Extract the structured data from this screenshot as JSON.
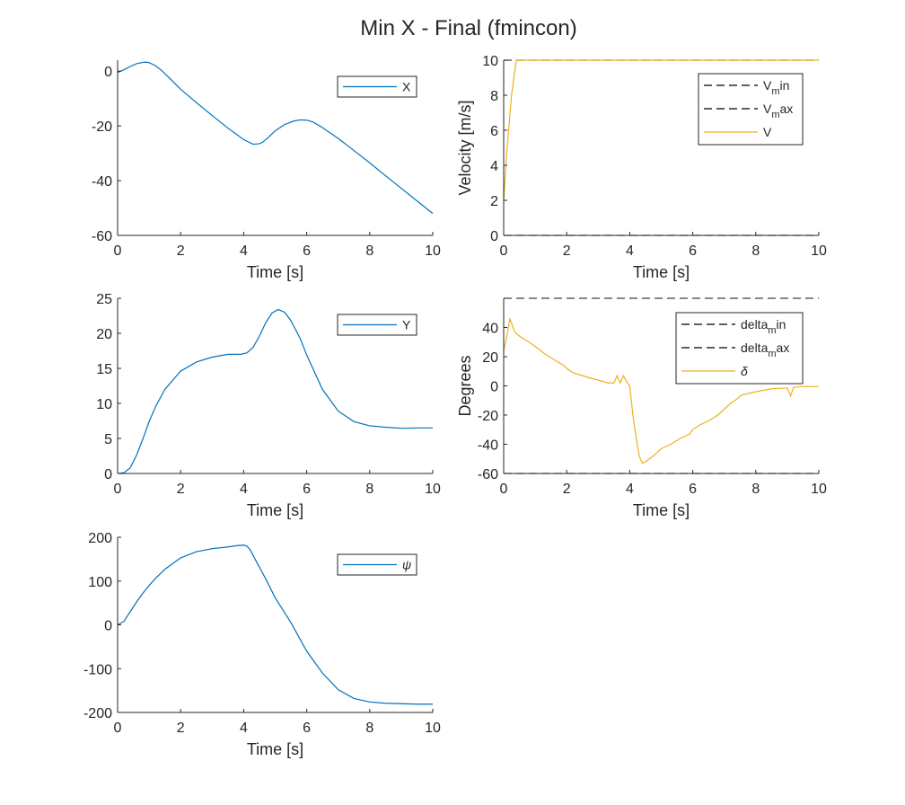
{
  "figure": {
    "title": "Min X - Final (fmincon)"
  },
  "colors": {
    "series_blue": "#0072BD",
    "series_yellow": "#EDB120",
    "bound_black": "#000000",
    "axes": "#262626"
  },
  "chart_data": [
    {
      "type": "line",
      "xlabel": "Time [s]",
      "ylabel": "",
      "xlim": [
        0,
        10
      ],
      "ylim": [
        -60,
        4
      ],
      "xticks": [
        0,
        2,
        4,
        6,
        8,
        10
      ],
      "yticks": [
        -60,
        -40,
        -20,
        0
      ],
      "legend_position": "top-right",
      "series": [
        {
          "name": "X",
          "style": "solid",
          "color": "#0072BD",
          "x": [
            0,
            0.2,
            0.4,
            0.6,
            0.8,
            0.9,
            1.0,
            1.2,
            1.4,
            1.6,
            1.8,
            2.0,
            2.5,
            3.0,
            3.5,
            4.0,
            4.3,
            4.5,
            4.6,
            4.8,
            5.0,
            5.3,
            5.6,
            5.8,
            6.0,
            6.2,
            6.5,
            7.0,
            7.5,
            8.0,
            8.5,
            9.0,
            9.5,
            10.0
          ],
          "y": [
            -0.5,
            0.5,
            1.7,
            2.7,
            3.2,
            3.3,
            3.1,
            2.0,
            0.2,
            -2.0,
            -4.3,
            -6.6,
            -11.5,
            -16.2,
            -20.8,
            -25.0,
            -26.7,
            -26.5,
            -26.0,
            -24.0,
            -21.8,
            -19.5,
            -18.2,
            -17.8,
            -17.9,
            -18.6,
            -20.6,
            -24.6,
            -29.0,
            -33.5,
            -38.2,
            -42.8,
            -47.4,
            -52.0
          ]
        }
      ]
    },
    {
      "type": "line",
      "xlabel": "Time [s]",
      "ylabel": "Velocity [m/s]",
      "xlim": [
        0,
        10
      ],
      "ylim": [
        0,
        10
      ],
      "xticks": [
        0,
        2,
        4,
        6,
        8,
        10
      ],
      "yticks": [
        0,
        2,
        4,
        6,
        8,
        10
      ],
      "legend_position": "top-right",
      "series": [
        {
          "name": "V",
          "name_sub": "m",
          "name_suffix": "in",
          "style": "dashed",
          "color": "#000000",
          "x": [
            0,
            10
          ],
          "y": [
            0,
            0
          ]
        },
        {
          "name": "V",
          "name_sub": "m",
          "name_suffix": "ax",
          "style": "dashed",
          "color": "#000000",
          "x": [
            0,
            10
          ],
          "y": [
            10,
            10
          ]
        },
        {
          "name": "V",
          "style": "solid",
          "color": "#EDB120",
          "x": [
            0,
            0.1,
            0.25,
            0.4,
            1.0,
            10.0
          ],
          "y": [
            2.0,
            4.8,
            8.0,
            10.0,
            10.0,
            10.0
          ]
        }
      ]
    },
    {
      "type": "line",
      "xlabel": "Time [s]",
      "ylabel": "",
      "xlim": [
        0,
        10
      ],
      "ylim": [
        0,
        25
      ],
      "xticks": [
        0,
        2,
        4,
        6,
        8,
        10
      ],
      "yticks": [
        0,
        5,
        10,
        15,
        20,
        25
      ],
      "legend_position": "top-right",
      "series": [
        {
          "name": "Y",
          "style": "solid",
          "color": "#0072BD",
          "x": [
            0,
            0.2,
            0.4,
            0.6,
            0.8,
            1.0,
            1.2,
            1.5,
            2.0,
            2.5,
            3.0,
            3.5,
            3.9,
            4.1,
            4.3,
            4.5,
            4.7,
            4.9,
            5.1,
            5.3,
            5.5,
            5.8,
            6.0,
            6.5,
            7.0,
            7.5,
            8.0,
            8.5,
            9.0,
            9.5,
            10.0
          ],
          "y": [
            0,
            0.1,
            0.8,
            2.6,
            4.9,
            7.4,
            9.5,
            12.0,
            14.6,
            15.9,
            16.6,
            17.0,
            17.0,
            17.2,
            18.0,
            19.6,
            21.5,
            22.9,
            23.4,
            23.0,
            21.8,
            19.2,
            16.9,
            12.0,
            8.9,
            7.4,
            6.8,
            6.6,
            6.45,
            6.5,
            6.5
          ]
        }
      ]
    },
    {
      "type": "line",
      "xlabel": "Time [s]",
      "ylabel": "Degrees",
      "xlim": [
        0,
        10
      ],
      "ylim": [
        -60,
        60
      ],
      "xticks": [
        0,
        2,
        4,
        6,
        8,
        10
      ],
      "yticks": [
        -60,
        -40,
        -20,
        0,
        20,
        40
      ],
      "legend_position": "top-right",
      "series": [
        {
          "name": "delta",
          "name_sub": "m",
          "name_suffix": "in",
          "style": "dashed",
          "color": "#000000",
          "x": [
            0,
            10
          ],
          "y": [
            -60,
            -60
          ]
        },
        {
          "name": "delta",
          "name_sub": "m",
          "name_suffix": "ax",
          "style": "dashed",
          "color": "#000000",
          "x": [
            0,
            10
          ],
          "y": [
            60,
            60
          ]
        },
        {
          "name": "δ",
          "italic": true,
          "style": "solid",
          "color": "#EDB120",
          "x": [
            0,
            0.1,
            0.2,
            0.35,
            0.5,
            0.8,
            1.0,
            1.3,
            1.6,
            1.9,
            2.0,
            2.2,
            2.5,
            2.8,
            3.0,
            3.3,
            3.5,
            3.6,
            3.7,
            3.8,
            3.9,
            4.0,
            4.1,
            4.2,
            4.3,
            4.4,
            4.5,
            4.8,
            5.0,
            5.3,
            5.6,
            5.9,
            6.0,
            6.2,
            6.4,
            6.5,
            6.8,
            7.0,
            7.2,
            7.4,
            7.5,
            7.6,
            7.8,
            8.0,
            8.5,
            9.0,
            9.05,
            9.1,
            9.2,
            9.4,
            10.0
          ],
          "y": [
            24,
            34,
            46,
            37,
            34,
            30,
            27,
            22,
            18,
            14,
            12,
            9,
            7,
            5,
            4,
            2,
            2,
            7,
            2,
            7,
            3,
            0,
            -20,
            -35,
            -48,
            -53,
            -52,
            -47,
            -43,
            -40,
            -36,
            -33,
            -30,
            -27,
            -25,
            -24,
            -20,
            -16,
            -12,
            -9,
            -7,
            -6,
            -5,
            -4,
            -2,
            -1.5,
            -4,
            -7,
            -1,
            -0.5,
            -0.5
          ]
        }
      ]
    },
    {
      "type": "line",
      "xlabel": "Time [s]",
      "ylabel": "",
      "xlim": [
        0,
        10
      ],
      "ylim": [
        -200,
        200
      ],
      "xticks": [
        0,
        2,
        4,
        6,
        8,
        10
      ],
      "yticks": [
        -200,
        -100,
        0,
        100,
        200
      ],
      "legend_position": "top-right",
      "series": [
        {
          "name": "ψ",
          "italic": true,
          "style": "solid",
          "color": "#0072BD",
          "x": [
            0,
            0.2,
            0.4,
            0.6,
            0.8,
            1.0,
            1.2,
            1.5,
            2.0,
            2.5,
            3.0,
            3.5,
            3.8,
            4.0,
            4.1,
            4.2,
            4.4,
            4.7,
            5.0,
            5.5,
            6.0,
            6.5,
            7.0,
            7.5,
            8.0,
            8.5,
            9.0,
            9.5,
            10.0
          ],
          "y": [
            0,
            8,
            30,
            52,
            72,
            90,
            106,
            127,
            153,
            167,
            174,
            178,
            181,
            182,
            180,
            172,
            145,
            105,
            62,
            5,
            -60,
            -110,
            -148,
            -168,
            -176,
            -179,
            -180,
            -181,
            -181
          ]
        }
      ]
    }
  ]
}
